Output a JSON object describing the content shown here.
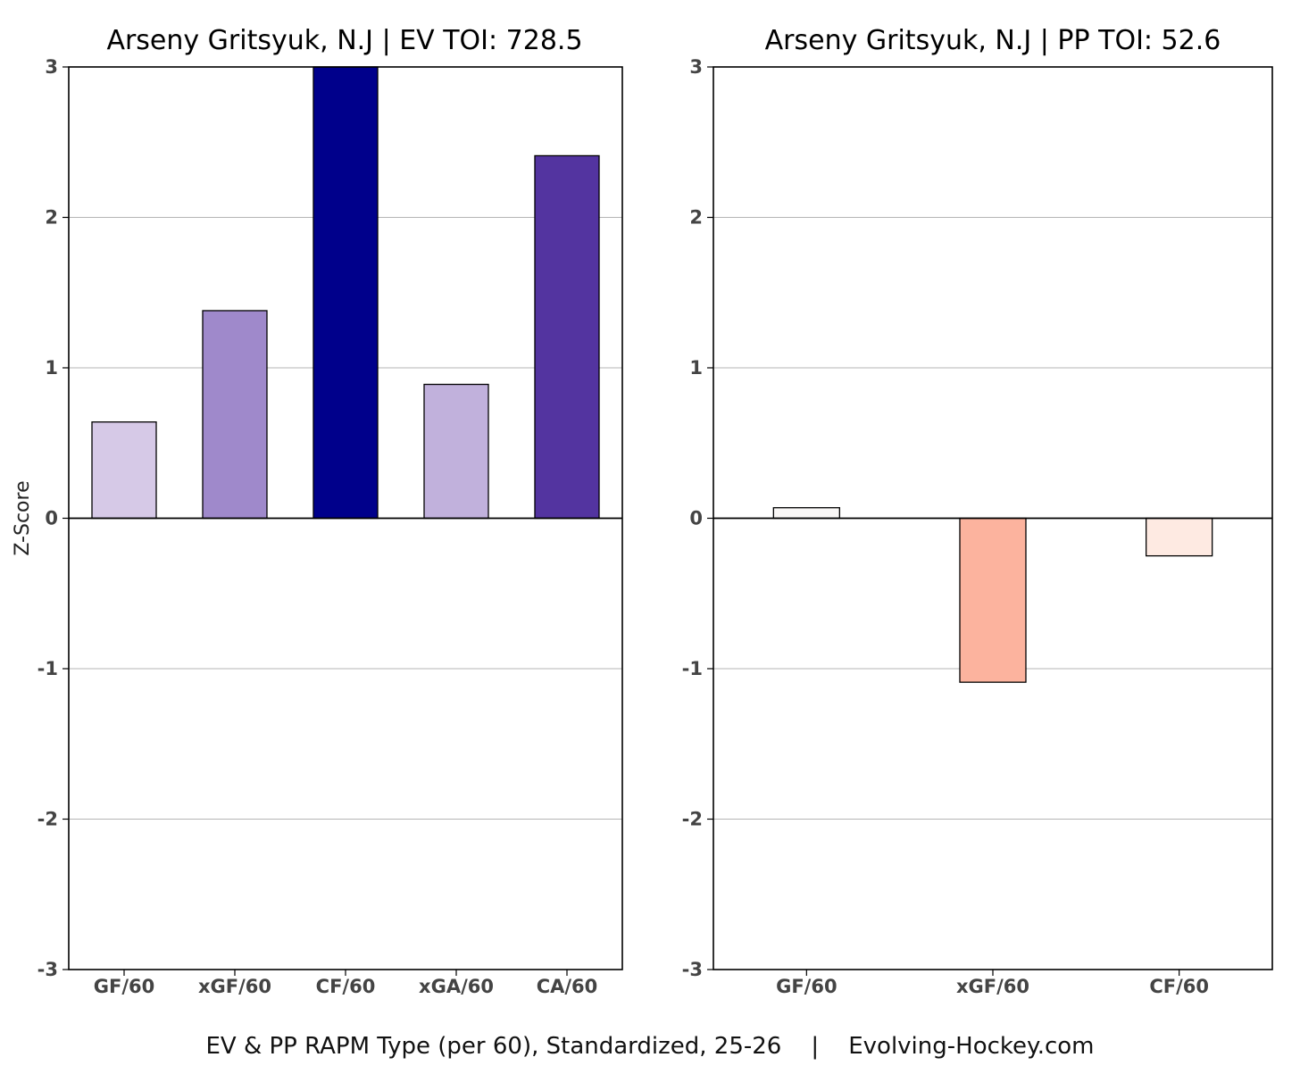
{
  "caption": "EV & PP RAPM Type (per 60), Standardized, 25-26    |    Evolving-Hockey.com",
  "chart_data": [
    {
      "type": "bar",
      "title": "Arseny Gritsyuk, N.J  |  EV TOI: 728.5",
      "ylabel": "Z-Score",
      "xlabel": "",
      "ylim": [
        -3,
        3
      ],
      "yticks": [
        -3,
        -2,
        -1,
        0,
        1,
        2,
        3
      ],
      "grid": "horizontal",
      "categories": [
        "GF/60",
        "xGF/60",
        "CF/60",
        "xGA/60",
        "CA/60"
      ],
      "values": [
        0.64,
        1.38,
        3.0,
        0.89,
        2.41
      ],
      "colors": [
        "#d6c9e7",
        "#9f89cb",
        "#00008b",
        "#c1b1dc",
        "#5334a0"
      ]
    },
    {
      "type": "bar",
      "title": "Arseny Gritsyuk, N.J  |  PP TOI: 52.6",
      "ylabel": "",
      "xlabel": "",
      "ylim": [
        -3,
        3
      ],
      "yticks": [
        -3,
        -2,
        -1,
        0,
        1,
        2,
        3
      ],
      "grid": "horizontal",
      "categories": [
        "GF/60",
        "xGF/60",
        "CF/60"
      ],
      "values": [
        0.07,
        -1.09,
        -0.25
      ],
      "colors": [
        "#f9f7f6",
        "#fcb39e",
        "#feeae2"
      ]
    }
  ]
}
